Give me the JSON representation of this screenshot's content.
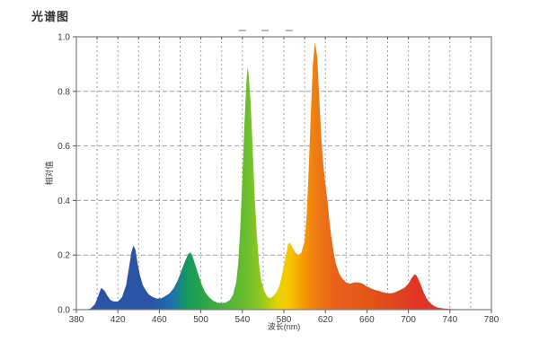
{
  "title": "光谱图",
  "colors": {
    "background": "#FFFFFF",
    "frame": "#7D7D7D",
    "grid": "#9E9E9E",
    "tick": "#555555",
    "text": "#3C3C3C",
    "top_dash": "#B8B8B8"
  },
  "chart_data": {
    "type": "area",
    "title": "光谱图",
    "xlabel": "波长(nm)",
    "ylabel": "相对值",
    "xlim": [
      380,
      780
    ],
    "ylim": [
      0,
      1.0
    ],
    "x_ticks": [
      380,
      420,
      460,
      500,
      540,
      580,
      620,
      660,
      700,
      740,
      780
    ],
    "y_ticks": [
      0.0,
      0.2,
      0.4,
      0.6,
      0.8,
      1.0
    ],
    "grid": {
      "x_step": 20,
      "y_step": 0.2,
      "style": "dashed",
      "on": true
    },
    "legend": "none",
    "annotations": {
      "top_dash_wavelengths": [
        540,
        562,
        585
      ]
    },
    "series": [
      {
        "name": "spectrum",
        "points": [
          [
            380,
            0
          ],
          [
            390,
            0
          ],
          [
            394,
            0.005
          ],
          [
            398,
            0.02
          ],
          [
            401,
            0.05
          ],
          [
            404,
            0.08
          ],
          [
            407,
            0.07
          ],
          [
            410,
            0.05
          ],
          [
            413,
            0.035
          ],
          [
            416,
            0.03
          ],
          [
            420,
            0.03
          ],
          [
            424,
            0.045
          ],
          [
            428,
            0.09
          ],
          [
            431,
            0.16
          ],
          [
            433,
            0.21
          ],
          [
            435,
            0.235
          ],
          [
            437,
            0.22
          ],
          [
            439,
            0.17
          ],
          [
            441,
            0.13
          ],
          [
            444,
            0.09
          ],
          [
            447,
            0.07
          ],
          [
            450,
            0.055
          ],
          [
            454,
            0.045
          ],
          [
            458,
            0.04
          ],
          [
            462,
            0.042
          ],
          [
            466,
            0.05
          ],
          [
            470,
            0.06
          ],
          [
            474,
            0.08
          ],
          [
            478,
            0.11
          ],
          [
            482,
            0.15
          ],
          [
            485,
            0.18
          ],
          [
            488,
            0.205
          ],
          [
            490,
            0.21
          ],
          [
            492,
            0.195
          ],
          [
            495,
            0.16
          ],
          [
            498,
            0.125
          ],
          [
            501,
            0.09
          ],
          [
            504,
            0.065
          ],
          [
            508,
            0.045
          ],
          [
            512,
            0.032
          ],
          [
            516,
            0.026
          ],
          [
            520,
            0.024
          ],
          [
            524,
            0.026
          ],
          [
            528,
            0.035
          ],
          [
            531,
            0.055
          ],
          [
            534,
            0.1
          ],
          [
            536,
            0.17
          ],
          [
            538,
            0.3
          ],
          [
            540,
            0.48
          ],
          [
            542,
            0.68
          ],
          [
            544,
            0.84
          ],
          [
            545,
            0.89
          ],
          [
            546,
            0.865
          ],
          [
            548,
            0.76
          ],
          [
            550,
            0.58
          ],
          [
            552,
            0.4
          ],
          [
            554,
            0.27
          ],
          [
            556,
            0.17
          ],
          [
            558,
            0.11
          ],
          [
            561,
            0.068
          ],
          [
            564,
            0.048
          ],
          [
            567,
            0.042
          ],
          [
            570,
            0.05
          ],
          [
            573,
            0.065
          ],
          [
            576,
            0.09
          ],
          [
            579,
            0.14
          ],
          [
            582,
            0.2
          ],
          [
            584,
            0.24
          ],
          [
            586,
            0.245
          ],
          [
            588,
            0.23
          ],
          [
            591,
            0.21
          ],
          [
            594,
            0.2
          ],
          [
            597,
            0.21
          ],
          [
            600,
            0.25
          ],
          [
            602,
            0.35
          ],
          [
            604,
            0.52
          ],
          [
            606,
            0.72
          ],
          [
            608,
            0.9
          ],
          [
            610,
            0.98
          ],
          [
            612,
            0.93
          ],
          [
            614,
            0.78
          ],
          [
            616,
            0.63
          ],
          [
            618,
            0.53
          ],
          [
            620,
            0.46
          ],
          [
            622,
            0.4
          ],
          [
            624,
            0.32
          ],
          [
            626,
            0.26
          ],
          [
            628,
            0.21
          ],
          [
            630,
            0.17
          ],
          [
            633,
            0.135
          ],
          [
            636,
            0.115
          ],
          [
            640,
            0.1
          ],
          [
            644,
            0.095
          ],
          [
            648,
            0.1
          ],
          [
            652,
            0.1
          ],
          [
            656,
            0.095
          ],
          [
            660,
            0.085
          ],
          [
            664,
            0.078
          ],
          [
            668,
            0.072
          ],
          [
            672,
            0.068
          ],
          [
            676,
            0.063
          ],
          [
            680,
            0.06
          ],
          [
            684,
            0.06
          ],
          [
            688,
            0.065
          ],
          [
            692,
            0.072
          ],
          [
            696,
            0.08
          ],
          [
            700,
            0.095
          ],
          [
            703,
            0.115
          ],
          [
            706,
            0.13
          ],
          [
            708,
            0.125
          ],
          [
            711,
            0.1
          ],
          [
            714,
            0.07
          ],
          [
            717,
            0.045
          ],
          [
            720,
            0.028
          ],
          [
            724,
            0.015
          ],
          [
            728,
            0.008
          ],
          [
            734,
            0.004
          ],
          [
            742,
            0.002
          ],
          [
            755,
            0.001
          ],
          [
            770,
            0
          ],
          [
            780,
            0
          ]
        ]
      }
    ],
    "gradient_stops": [
      [
        0.0,
        "#2B53A6"
      ],
      [
        0.18,
        "#2B53A6"
      ],
      [
        0.23,
        "#1E6FB0"
      ],
      [
        0.265,
        "#14975F"
      ],
      [
        0.3,
        "#27A449"
      ],
      [
        0.36,
        "#4DB236"
      ],
      [
        0.415,
        "#6EC02C"
      ],
      [
        0.45,
        "#9DC91C"
      ],
      [
        0.485,
        "#E6D400"
      ],
      [
        0.515,
        "#F7C500"
      ],
      [
        0.545,
        "#F59D00"
      ],
      [
        0.575,
        "#EF7D12"
      ],
      [
        0.625,
        "#E8611A"
      ],
      [
        0.71,
        "#E25417"
      ],
      [
        0.775,
        "#E0451D"
      ],
      [
        0.815,
        "#E13427"
      ],
      [
        1.0,
        "#DA2C20"
      ]
    ]
  }
}
